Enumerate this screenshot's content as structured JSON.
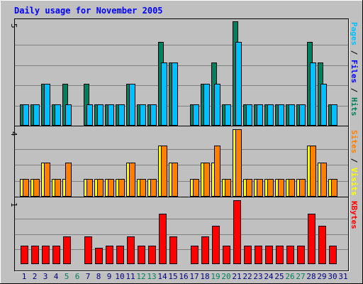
{
  "chart_data": {
    "type": "bar",
    "title": "Daily usage for November 2005",
    "categories": [
      "1",
      "2",
      "3",
      "4",
      "5",
      "6",
      "7",
      "8",
      "9",
      "10",
      "11",
      "12",
      "13",
      "14",
      "15",
      "16",
      "17",
      "18",
      "19",
      "20",
      "21",
      "22",
      "23",
      "24",
      "25",
      "26",
      "27",
      "28",
      "29",
      "30",
      "31"
    ],
    "weekend_days": [
      "5",
      "6",
      "12",
      "13",
      "19",
      "20",
      "26",
      "27"
    ],
    "panels": [
      {
        "name": "pages-files-hits",
        "y_max_label": "5",
        "ylim": [
          0,
          5
        ],
        "legend": [
          {
            "text": "Pages",
            "color": "#00c0ff"
          },
          {
            "text": " / ",
            "color": "#000000"
          },
          {
            "text": "Files",
            "color": "#0000ff"
          },
          {
            "text": " / ",
            "color": "#000000"
          },
          {
            "text": "Hits",
            "color": "#00805c"
          }
        ],
        "series": [
          {
            "name": "Hits",
            "color": "#008060",
            "values": [
              1,
              1,
              2,
              1,
              2,
              0,
              2,
              1,
              1,
              1,
              2,
              1,
              1,
              4,
              3,
              0,
              1,
              2,
              3,
              1,
              5,
              1,
              1,
              1,
              1,
              1,
              1,
              4,
              3,
              1,
              0
            ]
          },
          {
            "name": "Files",
            "color": "#00c0ff",
            "values": [
              1,
              1,
              2,
              1,
              1,
              0,
              1,
              1,
              1,
              1,
              2,
              1,
              1,
              3,
              3,
              0,
              1,
              2,
              2,
              1,
              4,
              1,
              1,
              1,
              1,
              1,
              1,
              3,
              2,
              1,
              0
            ]
          }
        ]
      },
      {
        "name": "sites-visits",
        "y_max_label": "4",
        "ylim": [
          0,
          4
        ],
        "legend": [
          {
            "text": "Sites",
            "color": "#ff8000"
          },
          {
            "text": " / ",
            "color": "#000000"
          },
          {
            "text": "Visits",
            "color": "#ffff00"
          }
        ],
        "series": [
          {
            "name": "Visits",
            "color": "#ffff00",
            "values": [
              1,
              1,
              2,
              1,
              1,
              0,
              1,
              1,
              1,
              1,
              2,
              1,
              1,
              3,
              2,
              0,
              1,
              2,
              2,
              1,
              4,
              1,
              1,
              1,
              1,
              1,
              1,
              3,
              2,
              1,
              0
            ]
          },
          {
            "name": "Sites",
            "color": "#ff8000",
            "values": [
              1,
              1,
              2,
              1,
              2,
              0,
              1,
              1,
              1,
              1,
              2,
              1,
              1,
              3,
              2,
              0,
              1,
              2,
              3,
              1,
              4,
              1,
              1,
              1,
              1,
              1,
              1,
              3,
              2,
              1,
              0
            ]
          }
        ]
      },
      {
        "name": "kbytes",
        "y_max_label": "1",
        "ylim": [
          0,
          1
        ],
        "legend": [
          {
            "text": "KBytes",
            "color": "#ff0000"
          }
        ],
        "series": [
          {
            "name": "KBytes",
            "color": "#ff0000",
            "values": [
              0.28,
              0.28,
              0.28,
              0.28,
              0.43,
              0,
              0.43,
              0.25,
              0.28,
              0.28,
              0.43,
              0.28,
              0.28,
              0.79,
              0.43,
              0,
              0.28,
              0.43,
              0.6,
              0.28,
              1.0,
              0.28,
              0.28,
              0.28,
              0.28,
              0.28,
              0.28,
              0.79,
              0.6,
              0.28,
              0
            ]
          }
        ]
      }
    ],
    "colors": {
      "frame": "#c0c0c0",
      "plot_background": "#c0c0c0",
      "grid": "#808080",
      "title": "#0000ff",
      "x_label_weekday": "#000080",
      "x_label_weekend": "#00805c"
    }
  }
}
